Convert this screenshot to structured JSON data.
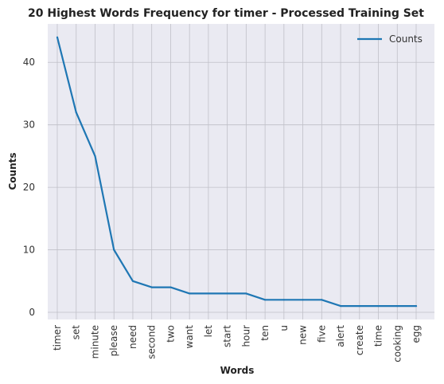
{
  "chart_data": {
    "type": "line",
    "title": "20 Highest Words Frequency for timer - Processed Training Set",
    "xlabel": "Words",
    "ylabel": "Counts",
    "categories": [
      "timer",
      "set",
      "minute",
      "please",
      "need",
      "second",
      "two",
      "want",
      "let",
      "start",
      "hour",
      "ten",
      "u",
      "new",
      "five",
      "alert",
      "create",
      "time",
      "cooking",
      "egg"
    ],
    "series": [
      {
        "name": "Counts",
        "values": [
          44,
          32,
          25,
          10,
          5,
          4,
          4,
          3,
          3,
          3,
          3,
          2,
          2,
          2,
          2,
          1,
          1,
          1,
          1,
          1
        ],
        "color": "#1f77b4"
      }
    ],
    "ylim": [
      -1.15,
      46.15
    ],
    "yticks": [
      0,
      10,
      20,
      30,
      40
    ],
    "grid": true,
    "legend_position": "top-right",
    "colors": {
      "plot_background": "#eaeaf2",
      "grid": "#c0c0c8"
    }
  }
}
